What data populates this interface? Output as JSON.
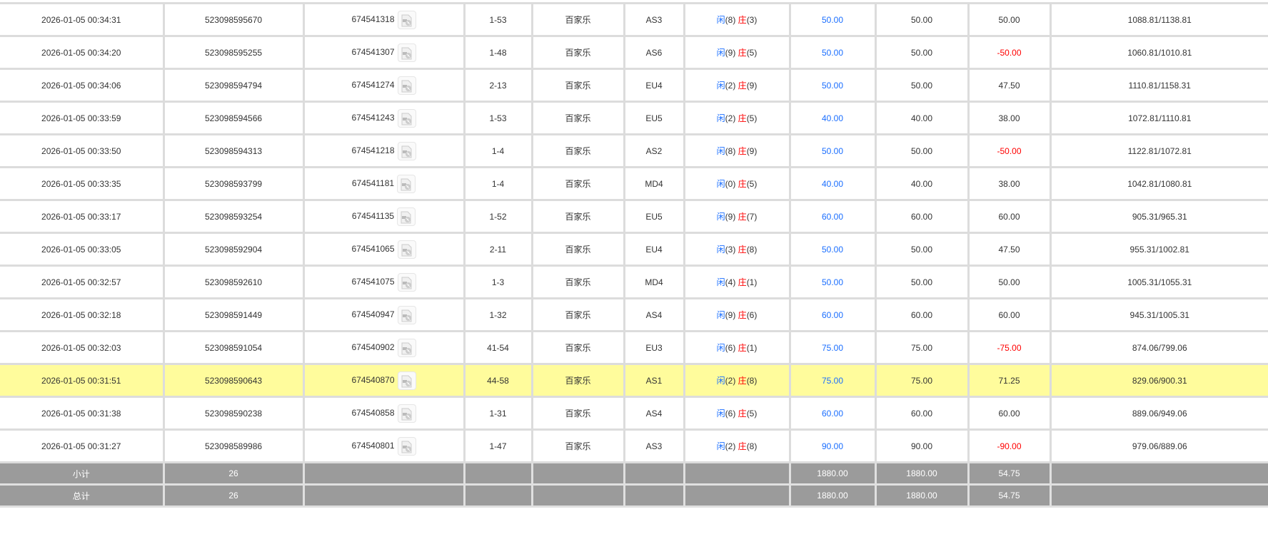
{
  "colors": {
    "player": "#1a6eff",
    "banker": "#ff0000",
    "negative": "#ff0000",
    "highlight": "#fffc9c",
    "footer": "#9b9b9b"
  },
  "player_char": "闲",
  "banker_char": "庄",
  "rows": [
    {
      "time": "2026-01-05 00:34:31",
      "bet_id": "523098595670",
      "round_id": "674541318",
      "shoe": "1-53",
      "game": "百家乐",
      "table": "AS3",
      "player": "(8)",
      "banker": "(3)",
      "bet": "50.00",
      "valid": "50.00",
      "win": "50.00",
      "win_negative": false,
      "balance": "1088.81/1138.81"
    },
    {
      "time": "2026-01-05 00:34:20",
      "bet_id": "523098595255",
      "round_id": "674541307",
      "shoe": "1-48",
      "game": "百家乐",
      "table": "AS6",
      "player": "(9)",
      "banker": "(5)",
      "bet": "50.00",
      "valid": "50.00",
      "win": "-50.00",
      "win_negative": true,
      "balance": "1060.81/1010.81"
    },
    {
      "time": "2026-01-05 00:34:06",
      "bet_id": "523098594794",
      "round_id": "674541274",
      "shoe": "2-13",
      "game": "百家乐",
      "table": "EU4",
      "player": "(2)",
      "banker": "(9)",
      "bet": "50.00",
      "valid": "50.00",
      "win": "47.50",
      "win_negative": false,
      "balance": "1110.81/1158.31"
    },
    {
      "time": "2026-01-05 00:33:59",
      "bet_id": "523098594566",
      "round_id": "674541243",
      "shoe": "1-53",
      "game": "百家乐",
      "table": "EU5",
      "player": "(2)",
      "banker": "(5)",
      "bet": "40.00",
      "valid": "40.00",
      "win": "38.00",
      "win_negative": false,
      "balance": "1072.81/1110.81"
    },
    {
      "time": "2026-01-05 00:33:50",
      "bet_id": "523098594313",
      "round_id": "674541218",
      "shoe": "1-4",
      "game": "百家乐",
      "table": "AS2",
      "player": "(8)",
      "banker": "(9)",
      "bet": "50.00",
      "valid": "50.00",
      "win": "-50.00",
      "win_negative": true,
      "balance": "1122.81/1072.81"
    },
    {
      "time": "2026-01-05 00:33:35",
      "bet_id": "523098593799",
      "round_id": "674541181",
      "shoe": "1-4",
      "game": "百家乐",
      "table": "MD4",
      "player": "(0)",
      "banker": "(5)",
      "bet": "40.00",
      "valid": "40.00",
      "win": "38.00",
      "win_negative": false,
      "balance": "1042.81/1080.81"
    },
    {
      "time": "2026-01-05 00:33:17",
      "bet_id": "523098593254",
      "round_id": "674541135",
      "shoe": "1-52",
      "game": "百家乐",
      "table": "EU5",
      "player": "(9)",
      "banker": "(7)",
      "bet": "60.00",
      "valid": "60.00",
      "win": "60.00",
      "win_negative": false,
      "balance": "905.31/965.31"
    },
    {
      "time": "2026-01-05 00:33:05",
      "bet_id": "523098592904",
      "round_id": "674541065",
      "shoe": "2-11",
      "game": "百家乐",
      "table": "EU4",
      "player": "(3)",
      "banker": "(8)",
      "bet": "50.00",
      "valid": "50.00",
      "win": "47.50",
      "win_negative": false,
      "balance": "955.31/1002.81"
    },
    {
      "time": "2026-01-05 00:32:57",
      "bet_id": "523098592610",
      "round_id": "674541075",
      "shoe": "1-3",
      "game": "百家乐",
      "table": "MD4",
      "player": "(4)",
      "banker": "(1)",
      "bet": "50.00",
      "valid": "50.00",
      "win": "50.00",
      "win_negative": false,
      "balance": "1005.31/1055.31"
    },
    {
      "time": "2026-01-05 00:32:18",
      "bet_id": "523098591449",
      "round_id": "674540947",
      "shoe": "1-32",
      "game": "百家乐",
      "table": "AS4",
      "player": "(9)",
      "banker": "(6)",
      "bet": "60.00",
      "valid": "60.00",
      "win": "60.00",
      "win_negative": false,
      "balance": "945.31/1005.31"
    },
    {
      "time": "2026-01-05 00:32:03",
      "bet_id": "523098591054",
      "round_id": "674540902",
      "shoe": "41-54",
      "game": "百家乐",
      "table": "EU3",
      "player": "(6)",
      "banker": "(1)",
      "bet": "75.00",
      "valid": "75.00",
      "win": "-75.00",
      "win_negative": true,
      "balance": "874.06/799.06"
    },
    {
      "time": "2026-01-05 00:31:51",
      "bet_id": "523098590643",
      "round_id": "674540870",
      "shoe": "44-58",
      "game": "百家乐",
      "table": "AS1",
      "player": "(2)",
      "banker": "(8)",
      "bet": "75.00",
      "valid": "75.00",
      "win": "71.25",
      "win_negative": false,
      "balance": "829.06/900.31",
      "highlighted": true
    },
    {
      "time": "2026-01-05 00:31:38",
      "bet_id": "523098590238",
      "round_id": "674540858",
      "shoe": "1-31",
      "game": "百家乐",
      "table": "AS4",
      "player": "(6)",
      "banker": "(5)",
      "bet": "60.00",
      "valid": "60.00",
      "win": "60.00",
      "win_negative": false,
      "balance": "889.06/949.06"
    },
    {
      "time": "2026-01-05 00:31:27",
      "bet_id": "523098589986",
      "round_id": "674540801",
      "shoe": "1-47",
      "game": "百家乐",
      "table": "AS3",
      "player": "(2)",
      "banker": "(8)",
      "bet": "90.00",
      "valid": "90.00",
      "win": "-90.00",
      "win_negative": true,
      "balance": "979.06/889.06"
    }
  ],
  "footer": [
    {
      "label": "小计",
      "count": "26",
      "bet": "1880.00",
      "valid": "1880.00",
      "win": "54.75"
    },
    {
      "label": "总计",
      "count": "26",
      "bet": "1880.00",
      "valid": "1880.00",
      "win": "54.75"
    }
  ],
  "icons": {
    "replay": "video-file-icon"
  }
}
